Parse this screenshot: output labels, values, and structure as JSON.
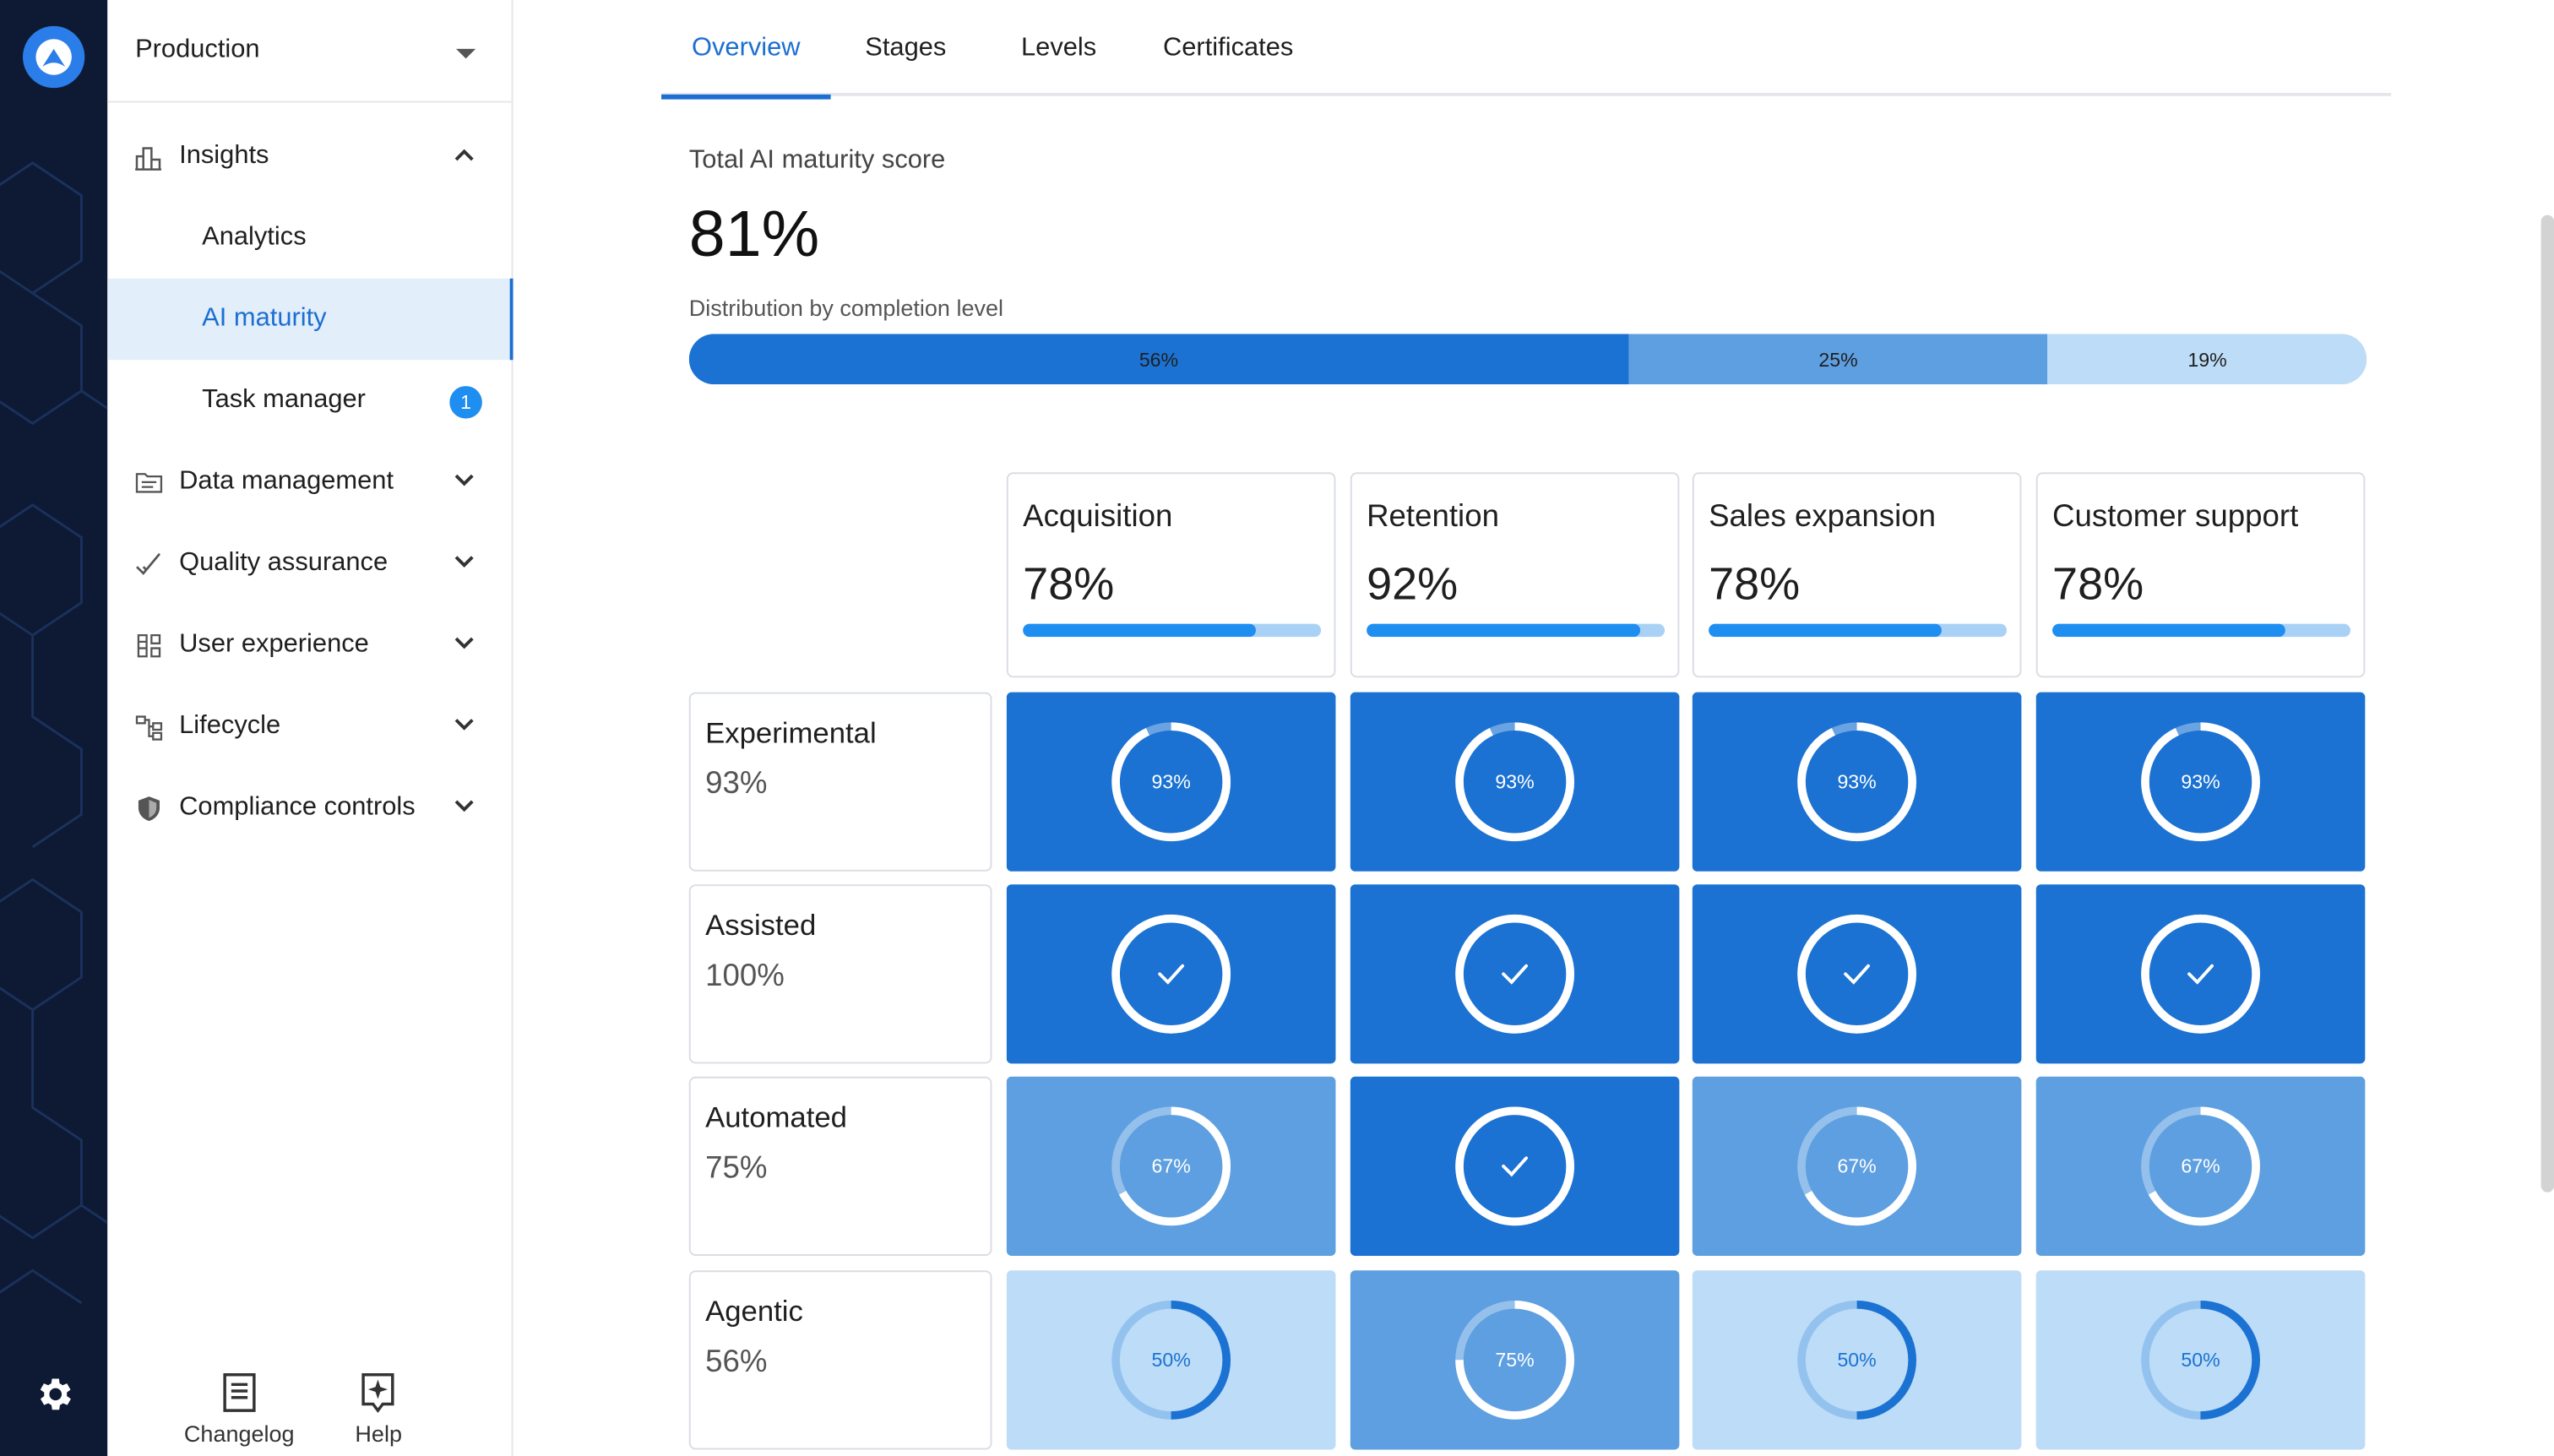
{
  "environment": {
    "label": "Production"
  },
  "sidebar": {
    "insights": {
      "label": "Insights",
      "children": [
        {
          "label": "Analytics"
        },
        {
          "label": "AI maturity"
        },
        {
          "label": "Task manager",
          "badge": "1"
        }
      ]
    },
    "sections": [
      {
        "label": "Data management",
        "icon": "folder-list-icon"
      },
      {
        "label": "Quality assurance",
        "icon": "double-check-icon"
      },
      {
        "label": "User experience",
        "icon": "layout-icon"
      },
      {
        "label": "Lifecycle",
        "icon": "flow-icon"
      },
      {
        "label": "Compliance controls",
        "icon": "shield-icon"
      }
    ],
    "footer": {
      "changelog": "Changelog",
      "help": "Help"
    }
  },
  "tabs": [
    {
      "label": "Overview",
      "active": true
    },
    {
      "label": "Stages"
    },
    {
      "label": "Levels"
    },
    {
      "label": "Certificates"
    }
  ],
  "score": {
    "label": "Total AI maturity score",
    "value": "81%",
    "distribution_label": "Distribution by completion level",
    "distribution": [
      {
        "label": "56%",
        "value": 56,
        "color": "#1b72d2"
      },
      {
        "label": "25%",
        "value": 25,
        "color": "#5d9fe0"
      },
      {
        "label": "19%",
        "value": 19,
        "color": "#bcdcf7"
      }
    ]
  },
  "categories": [
    {
      "name": "Acquisition",
      "pct": "78%",
      "progress": 0.78
    },
    {
      "name": "Retention",
      "pct": "92%",
      "progress": 0.92
    },
    {
      "name": "Sales expansion",
      "pct": "78%",
      "progress": 0.78
    },
    {
      "name": "Customer support",
      "pct": "78%",
      "progress": 0.78
    }
  ],
  "levels": [
    {
      "name": "Experimental",
      "pct": "93%",
      "cells": [
        {
          "label": "93%",
          "value": 0.93,
          "complete": false
        },
        {
          "label": "93%",
          "value": 0.93,
          "complete": false
        },
        {
          "label": "93%",
          "value": 0.93,
          "complete": false
        },
        {
          "label": "93%",
          "value": 0.93,
          "complete": false
        }
      ]
    },
    {
      "name": "Assisted",
      "pct": "100%",
      "cells": [
        {
          "label": "",
          "value": 1,
          "complete": true
        },
        {
          "label": "",
          "value": 1,
          "complete": true
        },
        {
          "label": "",
          "value": 1,
          "complete": true
        },
        {
          "label": "",
          "value": 1,
          "complete": true
        }
      ]
    },
    {
      "name": "Automated",
      "pct": "75%",
      "cells": [
        {
          "label": "67%",
          "value": 0.67,
          "complete": false
        },
        {
          "label": "",
          "value": 1,
          "complete": true
        },
        {
          "label": "67%",
          "value": 0.67,
          "complete": false
        },
        {
          "label": "67%",
          "value": 0.67,
          "complete": false
        }
      ]
    },
    {
      "name": "Agentic",
      "pct": "56%",
      "cells": [
        {
          "label": "50%",
          "value": 0.5,
          "complete": false
        },
        {
          "label": "75%",
          "value": 0.75,
          "complete": false
        },
        {
          "label": "50%",
          "value": 0.5,
          "complete": false
        },
        {
          "label": "50%",
          "value": 0.5,
          "complete": false
        }
      ]
    }
  ],
  "colors": {
    "accent": "#1b6fd1",
    "dark": "#1b72d2",
    "mid": "#5d9fe0",
    "light": "#bcdcf7",
    "rail": "#0e1a33"
  }
}
